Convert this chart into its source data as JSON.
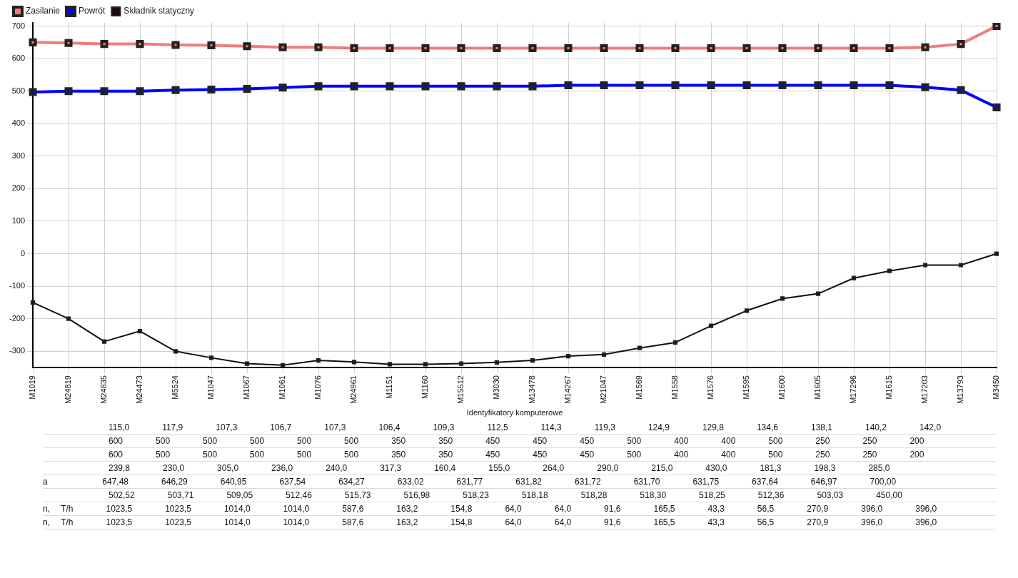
{
  "chart_data": {
    "type": "line",
    "xlabel": "Identyfikatory komputerowe",
    "categories": [
      "M1019",
      "M24819",
      "M24835",
      "M24473",
      "M5524",
      "M1047",
      "M1067",
      "M1061",
      "M1076",
      "M24961",
      "M1151",
      "M1160",
      "M15512",
      "M3030",
      "M13478",
      "M14267",
      "M21047",
      "M1569",
      "M1558",
      "M1576",
      "M1595",
      "M1600",
      "M1605",
      "M17296",
      "M1615",
      "M17203",
      "M13793",
      "M3450"
    ],
    "series": [
      {
        "name": "Zasilanie",
        "color": "#f07c7c",
        "values": [
          650,
          648,
          645,
          645,
          642,
          641,
          638,
          635,
          635,
          632,
          632,
          632,
          632,
          632,
          632,
          632,
          632,
          632,
          632,
          632,
          632,
          632,
          632,
          632,
          632,
          635,
          645,
          700
        ]
      },
      {
        "name": "Powrót",
        "color": "#0000ff",
        "values": [
          497,
          500,
          500,
          500,
          503,
          505,
          507,
          511,
          515,
          515,
          515,
          515,
          515,
          515,
          515,
          518,
          518,
          518,
          518,
          518,
          518,
          518,
          518,
          518,
          518,
          512,
          503,
          450
        ]
      },
      {
        "name": "Składnik statyczny",
        "color": "#1a0a14",
        "values": [
          -150,
          -200,
          -270,
          -238,
          -300,
          -320,
          -338,
          -343,
          -328,
          -333,
          -340,
          -340,
          -338,
          -334,
          -328,
          -315,
          -310,
          -290,
          -273,
          -222,
          -175,
          -138,
          -123,
          -75,
          -53,
          -35,
          -35,
          0
        ]
      }
    ],
    "ylim": [
      -350,
      710
    ],
    "yticks": [
      -300,
      -200,
      -100,
      0,
      100,
      200,
      300,
      400,
      500,
      600,
      700
    ],
    "grid": true,
    "legend": "top left",
    "marker": "square",
    "line_style": "solid",
    "annotations": [
      "      115,0   117,9   107,3   106,7   107,3   106,4   109,3   112,5   114,3   119,3   124,9   129,8   134,6   138,1   140,2   142,0",
      "      600   500   500   500   500   500   350   350   450   450   450   500   400   400   500   250   250   200",
      "      600   500   500   500   500   500   350   350   450   450   450   500   400   400   500   250   250   200",
      "      239,8   230,0   305,0   236,0   240,0   317,3   160,4   155,0   264,0   290,0   215,0   430,0   181,3   198,3   285,0",
      "a     647,48   646,29   640,95   637,54   634,27   633,02   631,77   631,82   631,72   631,70   631,75   637,64   646,97   700,00",
      "      502,52   503,71   509,05   512,46   515,73   516,98   518,23   518,18   518,28   518,30   518,25   512,36   503,03   450,00",
      "n, T/h   1023,5   1023,5   1014,0   1014,0   587,6   163,2   154,8   64,0   64,0   91,6   165,5   43,3   56,5   270,9   396,0   396,0",
      "n, T/h   1023,5   1023,5   1014,0   1014,0   587,6   163,2   154,8   64,0   64,0   91,6   165,5   43,3   56,5   270,9   396,0   396,0"
    ]
  }
}
